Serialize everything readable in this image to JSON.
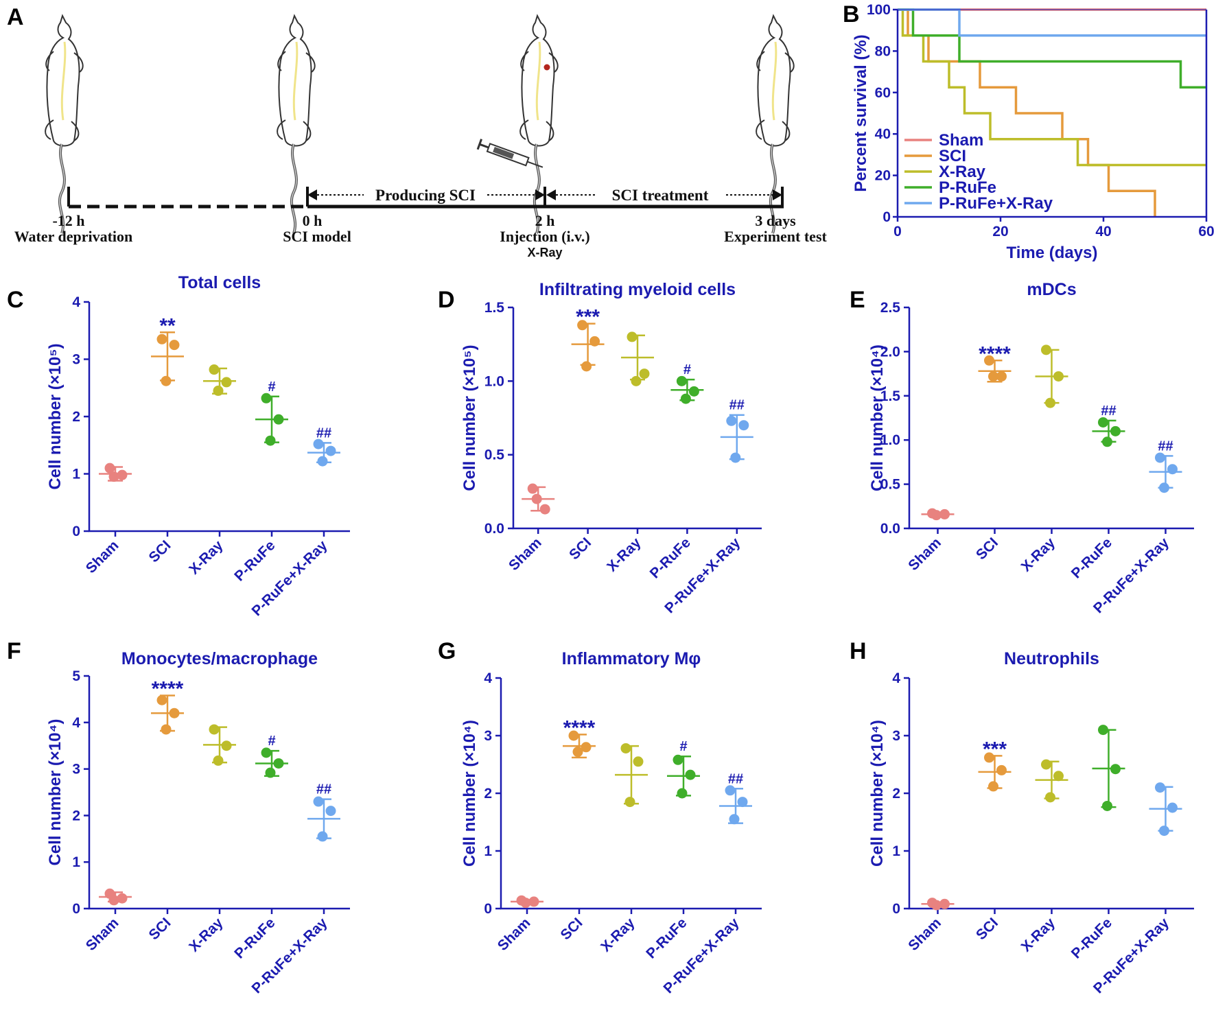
{
  "panel_labels": [
    "A",
    "B",
    "C",
    "D",
    "E",
    "F",
    "G",
    "H"
  ],
  "timeline": {
    "producing_label": "Producing SCI",
    "treatment_label": "SCI treatment",
    "points": [
      {
        "time": "-12 h",
        "label": "Water deprivation",
        "sub": ""
      },
      {
        "time": "0 h",
        "label": "SCI model",
        "sub": ""
      },
      {
        "time": "2 h",
        "label": "Injection (i.v.)",
        "sub": "X-Ray"
      },
      {
        "time": "3 days",
        "label": "Experiment test",
        "sub": ""
      }
    ]
  },
  "colors": {
    "axis": "#1b1bb0",
    "Sham": "#e8827f",
    "SCI": "#e59a3c",
    "X-Ray": "#bdbd2a",
    "P-RuFe": "#3fae2a",
    "P-RuFe+X-Ray": "#6fa8ee"
  },
  "chart_data": [
    {
      "panel": "B",
      "type": "line",
      "title": "",
      "xlabel": "Time (days)",
      "ylabel": "Percent survival (%)",
      "xlim": [
        0,
        60
      ],
      "ylim": [
        0,
        100
      ],
      "xticks": [
        0,
        20,
        40,
        60
      ],
      "yticks": [
        0,
        20,
        40,
        60,
        80,
        100
      ],
      "legend": "bottom-left",
      "series": [
        {
          "name": "Sham",
          "x": [
            0,
            60
          ],
          "y": [
            100,
            100
          ]
        },
        {
          "name": "SCI",
          "x": [
            0,
            2,
            6,
            16,
            23,
            32,
            37,
            41,
            50
          ],
          "y": [
            100,
            87.5,
            75,
            62.5,
            50,
            37.5,
            25,
            12.5,
            0
          ]
        },
        {
          "name": "X-Ray",
          "x": [
            0,
            1,
            5,
            10,
            13,
            18,
            20,
            35,
            60
          ],
          "y": [
            100,
            87.5,
            75,
            62.5,
            50,
            37.5,
            37.5,
            25,
            25
          ]
        },
        {
          "name": "P-RuFe",
          "x": [
            0,
            3,
            12,
            55,
            60
          ],
          "y": [
            100,
            87.5,
            75,
            62.5,
            62.5
          ]
        },
        {
          "name": "P-RuFe+X-Ray",
          "x": [
            0,
            12,
            60
          ],
          "y": [
            100,
            87.5,
            87.5
          ]
        }
      ]
    },
    {
      "panel": "C",
      "type": "scatter",
      "title": "Total cells",
      "ylabel": "Cell number (×10⁵)",
      "ylim": [
        0,
        4
      ],
      "yticks": [
        "0",
        "1",
        "2",
        "3",
        "4"
      ],
      "categories": [
        "Sham",
        "SCI",
        "X-Ray",
        "P-RuFe",
        "P-RuFe+X-Ray"
      ],
      "mean": [
        1.0,
        3.05,
        2.62,
        1.95,
        1.37
      ],
      "sd": [
        0.12,
        0.42,
        0.22,
        0.4,
        0.17
      ],
      "points": [
        [
          1.1,
          0.98,
          0.95
        ],
        [
          3.35,
          3.25,
          2.62
        ],
        [
          2.82,
          2.6,
          2.45
        ],
        [
          2.32,
          1.95,
          1.58
        ],
        [
          1.52,
          1.4,
          1.22
        ]
      ],
      "annotations": [
        "",
        "**",
        "",
        "#",
        "##"
      ]
    },
    {
      "panel": "D",
      "type": "scatter",
      "title": "Infiltrating myeloid cells",
      "ylabel": "Cell number (×10⁵)",
      "ylim": [
        0,
        1.5
      ],
      "yticks": [
        "0.0",
        "0.5",
        "1.0",
        "1.5"
      ],
      "categories": [
        "Sham",
        "SCI",
        "X-Ray",
        "P-RuFe",
        "P-RuFe+X-Ray"
      ],
      "mean": [
        0.2,
        1.25,
        1.16,
        0.94,
        0.62
      ],
      "sd": [
        0.08,
        0.14,
        0.15,
        0.07,
        0.15
      ],
      "points": [
        [
          0.27,
          0.13,
          0.2
        ],
        [
          1.38,
          1.27,
          1.1
        ],
        [
          1.3,
          1.05,
          1.0
        ],
        [
          1.0,
          0.93,
          0.88
        ],
        [
          0.73,
          0.7,
          0.48
        ]
      ],
      "annotations": [
        "",
        "***",
        "",
        "#",
        "##"
      ]
    },
    {
      "panel": "E",
      "type": "scatter",
      "title": "mDCs",
      "ylabel": "Cell number (×10⁴)",
      "ylim": [
        0,
        2.5
      ],
      "yticks": [
        "0.0",
        "0.5",
        "1.0",
        "1.5",
        "2.0",
        "2.5"
      ],
      "categories": [
        "Sham",
        "SCI",
        "X-Ray",
        "P-RuFe",
        "P-RuFe+X-Ray"
      ],
      "mean": [
        0.16,
        1.78,
        1.72,
        1.1,
        0.64
      ],
      "sd": [
        0.02,
        0.12,
        0.3,
        0.12,
        0.18
      ],
      "points": [
        [
          0.17,
          0.16,
          0.15
        ],
        [
          1.9,
          1.72,
          1.72
        ],
        [
          2.02,
          1.72,
          1.42
        ],
        [
          1.2,
          1.1,
          0.98
        ],
        [
          0.8,
          0.67,
          0.46
        ]
      ],
      "annotations": [
        "",
        "****",
        "",
        "##",
        "##"
      ]
    },
    {
      "panel": "F",
      "type": "scatter",
      "title": "Monocytes/macrophage",
      "ylabel": "Cell number (×10⁴)",
      "ylim": [
        0,
        5
      ],
      "yticks": [
        "0",
        "1",
        "2",
        "3",
        "4",
        "5"
      ],
      "categories": [
        "Sham",
        "SCI",
        "X-Ray",
        "P-RuFe",
        "P-RuFe+X-Ray"
      ],
      "mean": [
        0.25,
        4.2,
        3.52,
        3.12,
        1.93
      ],
      "sd": [
        0.1,
        0.38,
        0.38,
        0.27,
        0.42
      ],
      "points": [
        [
          0.32,
          0.22,
          0.18
        ],
        [
          4.48,
          4.2,
          3.85
        ],
        [
          3.85,
          3.5,
          3.18
        ],
        [
          3.35,
          3.12,
          2.92
        ],
        [
          2.3,
          2.1,
          1.55
        ]
      ],
      "annotations": [
        "",
        "****",
        "",
        "#",
        "##"
      ]
    },
    {
      "panel": "G",
      "type": "scatter",
      "title": "Inflammatory Mφ",
      "ylabel": "Cell number (×10⁴)",
      "ylim": [
        0,
        4
      ],
      "yticks": [
        "0",
        "1",
        "2",
        "3",
        "4"
      ],
      "categories": [
        "Sham",
        "SCI",
        "X-Ray",
        "P-RuFe",
        "P-RuFe+X-Ray"
      ],
      "mean": [
        0.12,
        2.82,
        2.32,
        2.3,
        1.78
      ],
      "sd": [
        0.03,
        0.2,
        0.5,
        0.34,
        0.3
      ],
      "points": [
        [
          0.14,
          0.12,
          0.1
        ],
        [
          3.0,
          2.8,
          2.72
        ],
        [
          2.78,
          2.55,
          1.85
        ],
        [
          2.58,
          2.32,
          2.0
        ],
        [
          2.05,
          1.85,
          1.55
        ]
      ],
      "annotations": [
        "",
        "****",
        "",
        "#",
        "##"
      ]
    },
    {
      "panel": "H",
      "type": "scatter",
      "title": "Neutrophils",
      "ylabel": "Cell number (×10⁴)",
      "ylim": [
        0,
        4
      ],
      "yticks": [
        "0",
        "1",
        "2",
        "3",
        "4"
      ],
      "categories": [
        "Sham",
        "SCI",
        "X-Ray",
        "P-RuFe",
        "P-RuFe+X-Ray"
      ],
      "mean": [
        0.08,
        2.37,
        2.23,
        2.43,
        1.73
      ],
      "sd": [
        0.03,
        0.28,
        0.32,
        0.67,
        0.38
      ],
      "points": [
        [
          0.1,
          0.08,
          0.06
        ],
        [
          2.62,
          2.4,
          2.12
        ],
        [
          2.5,
          2.3,
          1.93
        ],
        [
          3.1,
          2.42,
          1.78
        ],
        [
          2.1,
          1.75,
          1.35
        ]
      ],
      "annotations": [
        "",
        "***",
        "",
        "",
        ""
      ]
    }
  ]
}
